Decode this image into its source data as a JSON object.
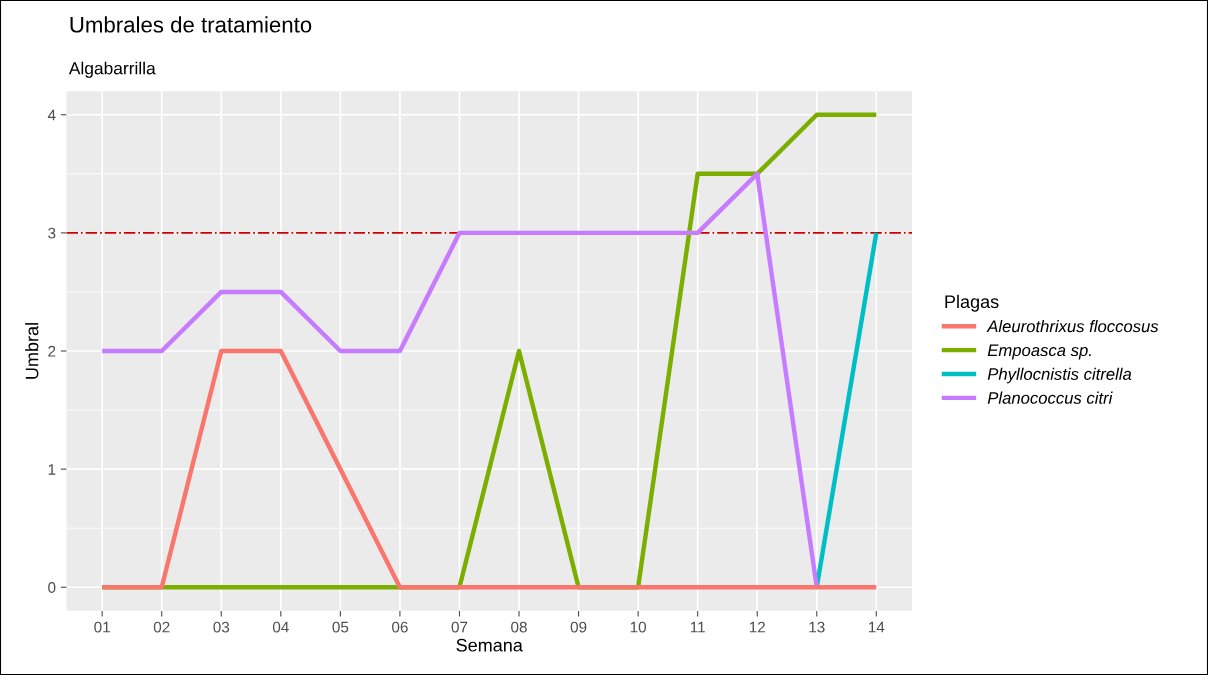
{
  "chart_data": {
    "type": "line",
    "title": "Umbrales de tratamiento",
    "subtitle": "Algabarrilla",
    "xlabel": "Semana",
    "ylabel": "Umbral",
    "legend_title": "Plagas",
    "legend": "right",
    "grid": true,
    "marker": "none",
    "line_style": "solid",
    "categories": [
      "01",
      "02",
      "03",
      "04",
      "05",
      "06",
      "07",
      "08",
      "09",
      "10",
      "11",
      "12",
      "13",
      "14"
    ],
    "ylim": [
      -0.2,
      4.2
    ],
    "yticks": [
      0,
      1,
      2,
      3,
      4
    ],
    "ref_lines": [
      {
        "axis": "y",
        "value": 3,
        "label": null,
        "color": "#cc0000",
        "line_style": "dashdot"
      }
    ],
    "series": [
      {
        "name": "Aleurothrixus floccosus",
        "color": "#f8766d",
        "values": [
          0,
          0,
          2,
          2,
          1,
          0,
          0,
          0,
          0,
          0,
          0,
          0,
          0,
          0
        ]
      },
      {
        "name": "Empoasca sp.",
        "color": "#7cae00",
        "values": [
          0,
          0,
          0,
          0,
          0,
          0,
          0,
          2,
          0,
          0,
          3.5,
          3.5,
          4,
          4
        ]
      },
      {
        "name": "Phyllocnistis citrella",
        "color": "#00bfc4",
        "values": [
          null,
          null,
          null,
          null,
          null,
          null,
          null,
          null,
          null,
          null,
          null,
          null,
          0,
          3
        ]
      },
      {
        "name": "Planococcus citri",
        "color": "#c77cff",
        "values": [
          2,
          2,
          2.5,
          2.5,
          2,
          2,
          3,
          3,
          3,
          3,
          3,
          3.5,
          0,
          null
        ]
      }
    ]
  }
}
